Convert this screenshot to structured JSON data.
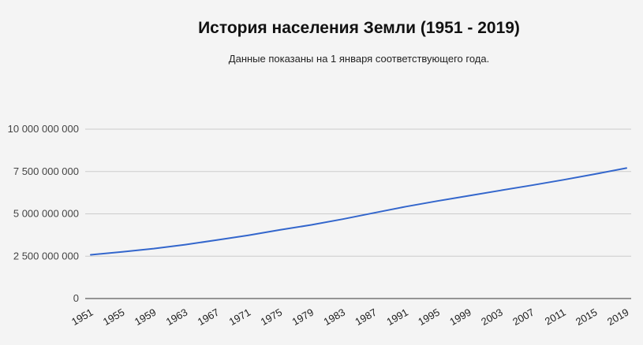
{
  "chart_data": {
    "type": "line",
    "title": "История населения Земли (1951 - 2019)",
    "subtitle": "Данные показаны на 1 января соответствующего года.",
    "xlabel": "",
    "ylabel": "",
    "ylim": [
      0,
      10000000000
    ],
    "y_ticks": [
      0,
      2500000000,
      5000000000,
      7500000000,
      10000000000
    ],
    "y_tick_labels": [
      "0",
      "2 500 000 000",
      "5 000 000 000",
      "7 500 000 000",
      "10 000 000 000"
    ],
    "x_tick_labels": [
      "1951",
      "1955",
      "1959",
      "1963",
      "1967",
      "1971",
      "1975",
      "1979",
      "1983",
      "1987",
      "1991",
      "1995",
      "1999",
      "2003",
      "2007",
      "2011",
      "2015",
      "2019"
    ],
    "grid": true,
    "legend": "none",
    "line_color": "#3366cc",
    "series": [
      {
        "x": [
          1951,
          1955,
          1959,
          1963,
          1967,
          1971,
          1975,
          1979,
          1983,
          1987,
          1991,
          1995,
          1999,
          2003,
          2007,
          2011,
          2015,
          2019
        ],
        "values": [
          2580000000,
          2760000000,
          2950000000,
          3180000000,
          3450000000,
          3730000000,
          4050000000,
          4350000000,
          4690000000,
          5060000000,
          5430000000,
          5760000000,
          6070000000,
          6380000000,
          6690000000,
          7010000000,
          7350000000,
          7700000000
        ]
      }
    ]
  }
}
